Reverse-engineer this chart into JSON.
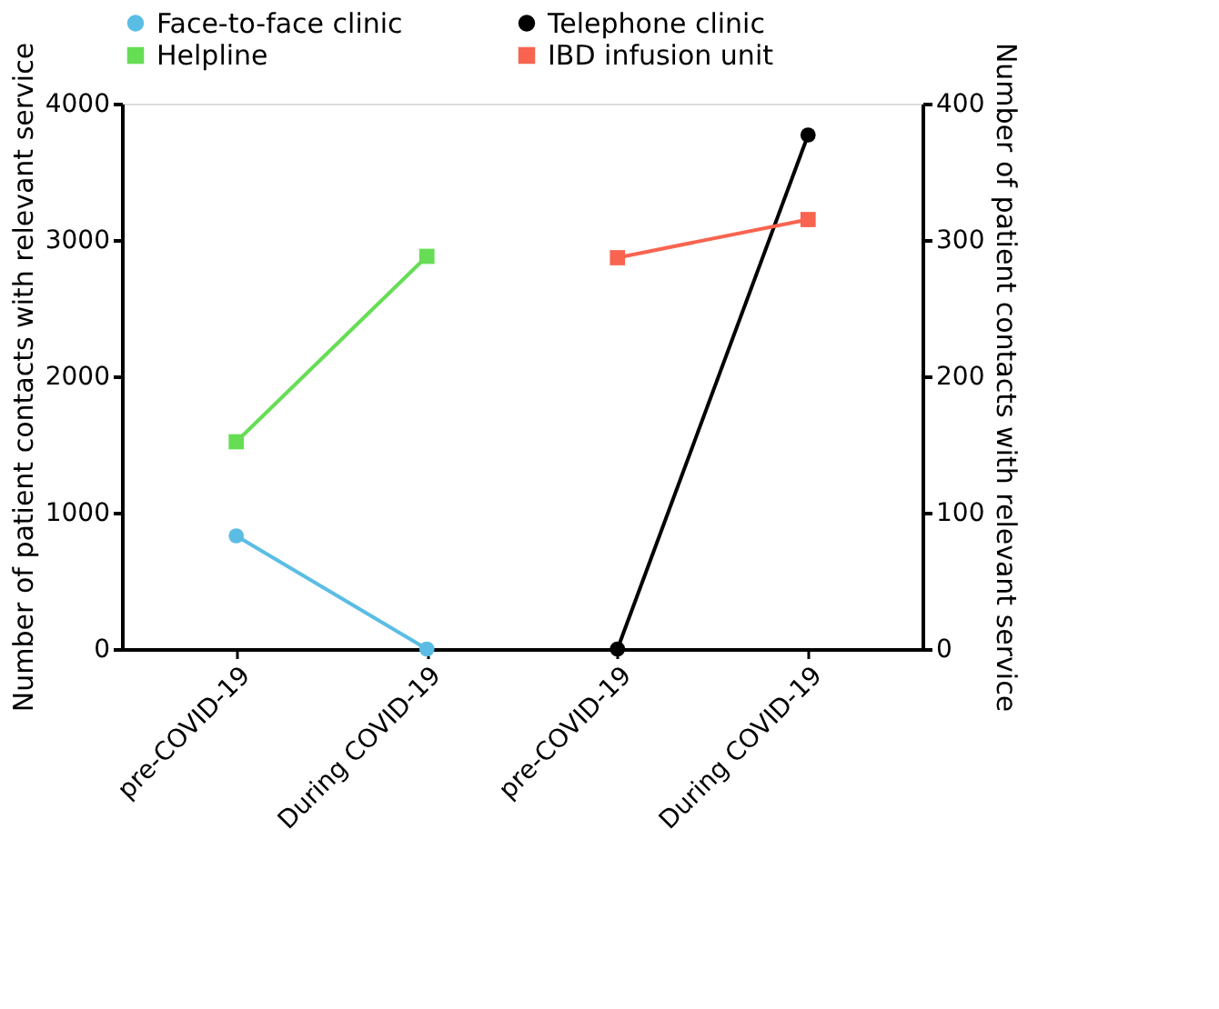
{
  "chart_data": {
    "type": "line",
    "categories": [
      "pre-COVID-19",
      "During COVID-19",
      "pre-COVID-19",
      "During COVID-19"
    ],
    "ylabel": "Number of patient contacts with relevant service",
    "y2label": "Number of patient contacts with relevant service",
    "ylim": [
      0,
      4000
    ],
    "yticks": [
      0,
      1000,
      2000,
      3000,
      4000
    ],
    "y2lim": [
      0,
      400
    ],
    "y2ticks": [
      0,
      100,
      200,
      300,
      400
    ],
    "grid": false,
    "legend": "top",
    "series": [
      {
        "name": "Face-to-face clinic",
        "color": "#5bbde4",
        "marker": "circle",
        "values": [
          830,
          0,
          null,
          null
        ]
      },
      {
        "name": "Telephone clinic",
        "color": "#000000",
        "marker": "circle",
        "axis": "y2",
        "values": [
          null,
          null,
          0,
          377
        ]
      },
      {
        "name": "Helpline",
        "color": "#66dd55",
        "marker": "square",
        "values": [
          1520,
          2880,
          null,
          null
        ]
      },
      {
        "name": "IBD infusion unit",
        "color": "#f86450",
        "marker": "square",
        "axis": "y2",
        "values": [
          null,
          null,
          287,
          315
        ]
      }
    ]
  }
}
